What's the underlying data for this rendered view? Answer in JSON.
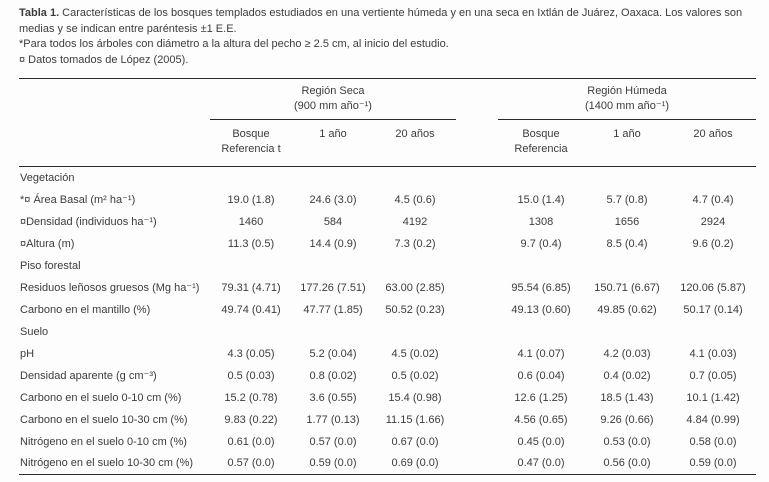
{
  "caption": {
    "label": "Tabla 1.",
    "text": "Características de los bosques templados estudiados en una vertiente húmeda y en una seca en Ixtlán de Juárez, Oaxaca. Los valores son medias y se indican entre paréntesis ±1 E.E.",
    "footnote_asterisk": "*Para todos los árboles con diámetro a la altura del pecho ≥ 2.5 cm, al inicio del estudio.",
    "footnote_currency": "¤ Datos tomados de López (2005)."
  },
  "table": {
    "groups": [
      {
        "title": "Región Seca",
        "subtitle": "(900 mm año⁻¹)"
      },
      {
        "title": "Región Húmeda",
        "subtitle": "(1400 mm año⁻¹)"
      }
    ],
    "columns": [
      "Bosque Referencia t",
      "1 año",
      "20 años",
      "Bosque Referencia",
      "1 año",
      "20 años"
    ],
    "sections": [
      {
        "title": "Vegetación",
        "rows": [
          {
            "label": "*¤ Área Basal (m² ha⁻¹)",
            "values": [
              "19.0 (1.8)",
              "24.6 (3.0)",
              "4.5 (0.6)",
              "15.0 (1.4)",
              "5.7 (0.8)",
              "4.7 (0.4)"
            ]
          },
          {
            "label": "¤Densidad (individuos ha⁻¹)",
            "values": [
              "1460",
              "584",
              "4192",
              "1308",
              "1656",
              "2924"
            ]
          },
          {
            "label": "¤Altura (m)",
            "values": [
              "11.3 (0.5)",
              "14.4 (0.9)",
              "7.3 (0.2)",
              "9.7 (0.4)",
              "8.5 (0.4)",
              "9.6 (0.2)"
            ]
          }
        ]
      },
      {
        "title": "Piso forestal",
        "rows": [
          {
            "label": "Residuos leñosos gruesos (Mg ha⁻¹)",
            "values": [
              "79.31 (4.71)",
              "177.26 (7.51)",
              "63.00 (2.85)",
              "95.54 (6.85)",
              "150.71 (6.67)",
              "120.06 (5.87)"
            ]
          },
          {
            "label": "Carbono en el mantillo (%)",
            "values": [
              "49.74 (0.41)",
              "47.77 (1.85)",
              "50.52 (0.23)",
              "49.13 (0.60)",
              "49.85 (0.62)",
              "50.17 (0.14)"
            ]
          }
        ]
      },
      {
        "title": "Suelo",
        "rows": [
          {
            "label": "pH",
            "values": [
              "4.3 (0.05)",
              "5.2 (0.04)",
              "4.5 (0.02)",
              "4.1 (0.07)",
              "4.2 (0.03)",
              "4.1 (0.03)"
            ]
          },
          {
            "label": "Densidad aparente (g cm⁻³)",
            "values": [
              "0.5 (0.03)",
              "0.8 (0.02)",
              "0.5 (0.02)",
              "0.6 (0.04)",
              "0.4 (0.02)",
              "0.7 (0.05)"
            ]
          },
          {
            "label": "Carbono en el suelo 0-10 cm (%)",
            "values": [
              "15.2 (0.78)",
              "3.6 (0.55)",
              "15.4 (0.98)",
              "12.6 (1.25)",
              "18.5 (1.43)",
              "10.1 (1.42)"
            ]
          },
          {
            "label": "Carbono en el suelo 10-30 cm (%)",
            "values": [
              "9.83 (0.22)",
              "1.77 (0.13)",
              "11.15 (1.66)",
              "4.56 (0.65)",
              "9.26 (0.66)",
              "4.84 (0.99)"
            ]
          },
          {
            "label": "Nitrógeno en el suelo 0-10 cm (%)",
            "values": [
              "0.61 (0.0)",
              "0.57 (0.0)",
              "0.67 (0.0)",
              "0.45 (0.0)",
              "0.53 (0.0)",
              "0.58 (0.0)"
            ]
          },
          {
            "label": "Nitrógeno en el suelo 10-30 cm (%)",
            "values": [
              "0.57 (0.0)",
              "0.59 (0.0)",
              "0.69 (0.0)",
              "0.47 (0.0)",
              "0.56 (0.0)",
              "0.59 (0.0)"
            ]
          }
        ]
      }
    ]
  },
  "colors": {
    "text": "#3c3c3c",
    "rule": "#2a2a2a",
    "background": "#fdfdfd"
  }
}
